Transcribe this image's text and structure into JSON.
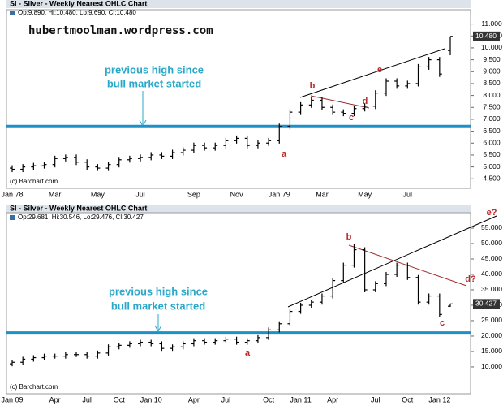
{
  "chart_data": [
    {
      "type": "ohlc",
      "title": "SI - Silver - Weekly Nearest OHLC Chart",
      "info": "Op:9.890, Hi:10.480, Lo:9.690, Cl:10.480",
      "credit": "(c) Barchart.com",
      "last_label": "10.480",
      "annotations": [
        "hubertmoolman.wordpress.com",
        "previous high since",
        "bull market started",
        "a",
        "b",
        "c",
        "d",
        "e"
      ],
      "categories": [
        "Jan 78",
        null,
        null,
        null,
        "Mar",
        null,
        null,
        null,
        "May",
        null,
        null,
        null,
        "Jul",
        null,
        null,
        null,
        null,
        "Sep",
        null,
        null,
        null,
        "Nov",
        null,
        null,
        null,
        "Jan 79",
        null,
        null,
        null,
        "Mar",
        null,
        null,
        null,
        "May",
        null,
        null,
        null,
        "Jul",
        null,
        null,
        null,
        null
      ],
      "open": [
        4.95,
        4.9,
        5.0,
        5.05,
        5.1,
        5.35,
        5.4,
        5.2,
        5.0,
        4.95,
        5.1,
        5.3,
        5.35,
        5.4,
        5.5,
        5.45,
        5.6,
        5.7,
        5.9,
        5.8,
        5.9,
        6.1,
        6.2,
        5.9,
        6.0,
        6.1,
        6.7,
        7.3,
        7.6,
        7.8,
        7.5,
        7.3,
        7.25,
        7.45,
        7.55,
        8.1,
        8.6,
        8.4,
        8.5,
        9.2,
        9.5,
        9.89
      ],
      "high": [
        5.07,
        5.12,
        5.17,
        5.22,
        5.47,
        5.52,
        5.52,
        5.32,
        5.12,
        5.22,
        5.42,
        5.47,
        5.52,
        5.62,
        5.62,
        5.72,
        5.82,
        6.02,
        6.02,
        6.02,
        6.22,
        6.32,
        6.32,
        6.12,
        6.22,
        6.82,
        7.42,
        7.72,
        7.92,
        7.92,
        7.62,
        7.42,
        7.57,
        7.67,
        8.22,
        8.72,
        8.72,
        8.62,
        9.32,
        9.62,
        9.62,
        10.48
      ],
      "low": [
        4.78,
        4.78,
        4.88,
        4.93,
        4.98,
        5.23,
        5.08,
        4.88,
        4.83,
        4.83,
        4.98,
        5.18,
        5.23,
        5.28,
        5.33,
        5.33,
        5.48,
        5.58,
        5.68,
        5.68,
        5.78,
        5.98,
        5.78,
        5.78,
        5.88,
        5.98,
        6.58,
        7.18,
        7.48,
        7.38,
        7.18,
        7.13,
        7.13,
        7.33,
        7.43,
        7.98,
        8.28,
        8.28,
        8.38,
        9.08,
        8.78,
        9.69
      ],
      "close": [
        4.9,
        5.0,
        5.05,
        5.1,
        5.35,
        5.4,
        5.2,
        5.0,
        4.95,
        5.1,
        5.3,
        5.35,
        5.4,
        5.5,
        5.45,
        5.6,
        5.7,
        5.9,
        5.8,
        5.9,
        6.1,
        6.2,
        5.9,
        6.0,
        6.1,
        6.7,
        7.3,
        7.6,
        7.8,
        7.5,
        7.3,
        7.25,
        7.45,
        7.55,
        8.1,
        8.6,
        8.4,
        8.5,
        9.2,
        9.5,
        8.9,
        10.48
      ],
      "color": "#000000",
      "hline": {
        "value": 6.7,
        "color": "#1e90c8"
      },
      "ylim": [
        4.1,
        11.6
      ],
      "yticks": [
        {
          "value": 4.5,
          "label": "4.500"
        },
        {
          "value": 5,
          "label": "5.000"
        },
        {
          "value": 5.5,
          "label": "5.500"
        },
        {
          "value": 6,
          "label": "6.000"
        },
        {
          "value": 6.5,
          "label": "6.500"
        },
        {
          "value": 7,
          "label": "7.000"
        },
        {
          "value": 7.5,
          "label": "7.500"
        },
        {
          "value": 8,
          "label": "8.000"
        },
        {
          "value": 8.5,
          "label": "8.500"
        },
        {
          "value": 9,
          "label": "9.000"
        },
        {
          "value": 9.5,
          "label": "9.500"
        },
        {
          "value": 10,
          "label": "10.000"
        },
        {
          "value": 10.5,
          "label": "10.500"
        },
        {
          "value": 11,
          "label": "11.000"
        }
      ]
    },
    {
      "type": "ohlc",
      "title": "SI - Silver - Weekly Nearest OHLC Chart",
      "info": "Op:29.681, Hi:30.546, Lo:29.476, Cl:30.427",
      "credit": "(c) Barchart.com",
      "last_label": "30.427",
      "annotations": [
        "previous high since",
        "bull market started",
        "a",
        "b",
        "c",
        "d?",
        "e?"
      ],
      "categories": [
        "Jan 09",
        null,
        null,
        null,
        "Apr",
        null,
        null,
        "Jul",
        null,
        null,
        "Oct",
        null,
        null,
        "Jan 10",
        null,
        null,
        null,
        "Apr",
        null,
        null,
        "Jul",
        null,
        null,
        null,
        "Oct",
        null,
        null,
        "Jan 11",
        null,
        null,
        "Apr",
        null,
        null,
        null,
        "Jul",
        null,
        null,
        "Oct",
        null,
        null,
        "Jan 12",
        null
      ],
      "open": [
        11,
        11.5,
        12.5,
        13,
        13.5,
        13.5,
        14,
        14,
        13.5,
        14.5,
        16.5,
        17,
        17.5,
        18,
        17.5,
        16,
        16.5,
        17.5,
        18.5,
        18,
        18.5,
        19,
        18,
        18.5,
        19.5,
        22,
        24,
        28,
        30,
        31,
        33,
        38,
        43,
        48,
        35,
        37,
        40,
        43,
        39,
        31,
        33,
        29.681
      ],
      "high": [
        12.3,
        13.3,
        13.8,
        14.3,
        14.3,
        14.8,
        14.8,
        14.8,
        15.3,
        17.3,
        17.8,
        18.3,
        18.8,
        18.8,
        18.3,
        17.3,
        18.3,
        19.3,
        19.3,
        19.3,
        19.8,
        19.8,
        19.3,
        20.3,
        22.8,
        24.8,
        28.8,
        30.8,
        31.8,
        33.8,
        38.8,
        43.8,
        49.8,
        48.8,
        37.8,
        40.8,
        43.8,
        43.8,
        39.8,
        33.8,
        33.8,
        30.546
      ],
      "low": [
        10.2,
        10.7,
        11.7,
        12.2,
        12.7,
        12.7,
        13.2,
        12.7,
        12.7,
        13.7,
        15.7,
        16.2,
        16.7,
        16.7,
        15.2,
        15.2,
        15.7,
        16.7,
        17.2,
        17.2,
        17.7,
        17.2,
        17.2,
        17.7,
        18.7,
        21.2,
        23.2,
        27.2,
        29.2,
        30.2,
        32.2,
        37.2,
        42.2,
        34.2,
        34.2,
        36.2,
        39.2,
        38.2,
        30.2,
        30.2,
        26.2,
        29.476
      ],
      "close": [
        11.5,
        12.5,
        13,
        13.5,
        13.5,
        14,
        14,
        13.5,
        14.5,
        16.5,
        17,
        17.5,
        18,
        17.5,
        16,
        16.5,
        17.5,
        18.5,
        18,
        18.5,
        19,
        18,
        18.5,
        19.5,
        22,
        24,
        28,
        30,
        31,
        33,
        38,
        43,
        48,
        35,
        37,
        40,
        43,
        39,
        31,
        33,
        27,
        30.427
      ],
      "color": "#000000",
      "hline": {
        "value": 21,
        "color": "#1e90c8"
      },
      "ylim": [
        1.3,
        60
      ],
      "yticks": [
        {
          "value": 10,
          "label": "10.000"
        },
        {
          "value": 15,
          "label": "15.000"
        },
        {
          "value": 20,
          "label": "20.000"
        },
        {
          "value": 25,
          "label": "25.000"
        },
        {
          "value": 30,
          "label": "30.000"
        },
        {
          "value": 35,
          "label": "35.000"
        },
        {
          "value": 40,
          "label": "40.000"
        },
        {
          "value": 45,
          "label": "45.000"
        },
        {
          "value": 50,
          "label": "50.000"
        },
        {
          "value": 55,
          "label": "55.000"
        }
      ]
    }
  ]
}
